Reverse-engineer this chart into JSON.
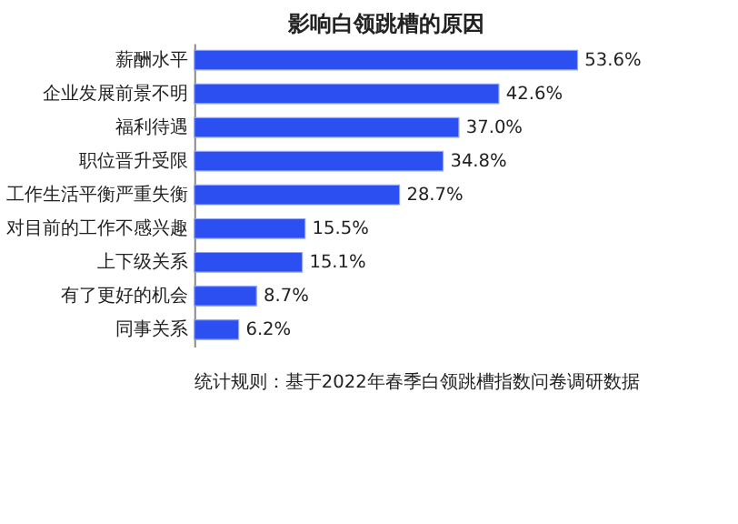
{
  "chart_data": {
    "type": "bar",
    "orientation": "horizontal",
    "title": "影响白领跳槽的原因",
    "categories": [
      "薪酬水平",
      "企业发展前景不明",
      "福利待遇",
      "职位晋升受限",
      "工作生活平衡严重失衡",
      "对目前的工作不感兴趣",
      "上下级关系",
      "有了更好的机会",
      "同事关系"
    ],
    "values": [
      53.6,
      42.6,
      37.0,
      34.8,
      28.7,
      15.5,
      15.1,
      8.7,
      6.2
    ],
    "value_labels": [
      "53.6%",
      "42.6%",
      "37.0%",
      "34.8%",
      "28.7%",
      "15.5%",
      "15.1%",
      "8.7%",
      "6.2%"
    ],
    "color": "#2b4ff0",
    "tick_labels": "y",
    "grid": false,
    "annotations": [
      "统计规则：基于2022年春季白领跳槽指数问卷调研数据"
    ]
  }
}
